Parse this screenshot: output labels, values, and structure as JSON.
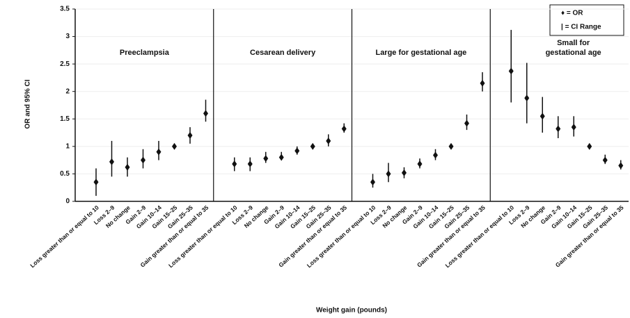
{
  "chart_data": {
    "type": "errorbar",
    "ylabel": "OR and 95% CI",
    "xlabel": "Weight gain (pounds)",
    "ylim": [
      0,
      3.5
    ],
    "yticks": [
      0,
      0.5,
      1,
      1.5,
      2,
      2.5,
      3,
      3.5
    ],
    "grid": true,
    "color": "#111111",
    "legend": [
      "♦ = OR",
      "| = CI Range"
    ],
    "panels": [
      {
        "title_lines": [
          "Preeclampsia"
        ],
        "categories": [
          "Loss greater than or equal to 10",
          "Loss 2–9",
          "No change",
          "Gain 2–9",
          "Gain 10–14",
          "Gain 15–25",
          "Gain 25–35",
          "Gain greater than or equal to 35"
        ],
        "values": [
          0.35,
          0.72,
          0.62,
          0.75,
          0.9,
          1.0,
          1.2,
          1.6
        ],
        "ci_low": [
          0.1,
          0.45,
          0.45,
          0.6,
          0.75,
          0.97,
          1.05,
          1.45
        ],
        "ci_high": [
          0.6,
          1.1,
          0.8,
          0.95,
          1.1,
          1.03,
          1.35,
          1.85
        ]
      },
      {
        "title_lines": [
          "Cesarean delivery"
        ],
        "categories": [
          "Loss greater than or equal to 10",
          "Loss 2–9",
          "No change",
          "Gain 2–9",
          "Gain 10–14",
          "Gain 15–25",
          "Gain 25–35",
          "Gain greater than or equal to 35"
        ],
        "values": [
          0.68,
          0.68,
          0.78,
          0.8,
          0.92,
          1.0,
          1.1,
          1.32
        ],
        "ci_low": [
          0.55,
          0.55,
          0.7,
          0.75,
          0.85,
          0.97,
          1.0,
          1.25
        ],
        "ci_high": [
          0.8,
          0.8,
          0.9,
          0.9,
          1.0,
          1.03,
          1.22,
          1.42
        ]
      },
      {
        "title_lines": [
          "Large for gestational age"
        ],
        "categories": [
          "Loss greater than or equal to 10",
          "Loss 2–9",
          "No change",
          "Gain 2–9",
          "Gain 10–14",
          "Gain 15–25",
          "Gain 25–35",
          "Gain greater than or equal to 35"
        ],
        "values": [
          0.35,
          0.5,
          0.52,
          0.68,
          0.84,
          1.0,
          1.42,
          2.15
        ],
        "ci_low": [
          0.25,
          0.35,
          0.42,
          0.6,
          0.75,
          0.97,
          1.3,
          2.0
        ],
        "ci_high": [
          0.5,
          0.7,
          0.62,
          0.78,
          0.95,
          1.03,
          1.58,
          2.35
        ]
      },
      {
        "title_lines": [
          "Small for",
          "gestational age"
        ],
        "categories": [
          "Loss greater than or equal to 10",
          "Loss 2–9",
          "No change",
          "Gain 2–9",
          "Gain 10–14",
          "Gain 15–25",
          "Gain 25–35",
          "Gain greater than or equal to 35"
        ],
        "values": [
          2.37,
          1.88,
          1.55,
          1.32,
          1.35,
          1.0,
          0.75,
          0.65
        ],
        "ci_low": [
          1.8,
          1.42,
          1.25,
          1.15,
          1.18,
          0.97,
          0.68,
          0.58
        ],
        "ci_high": [
          3.12,
          2.52,
          1.9,
          1.55,
          1.55,
          1.03,
          0.85,
          0.75
        ]
      }
    ]
  }
}
